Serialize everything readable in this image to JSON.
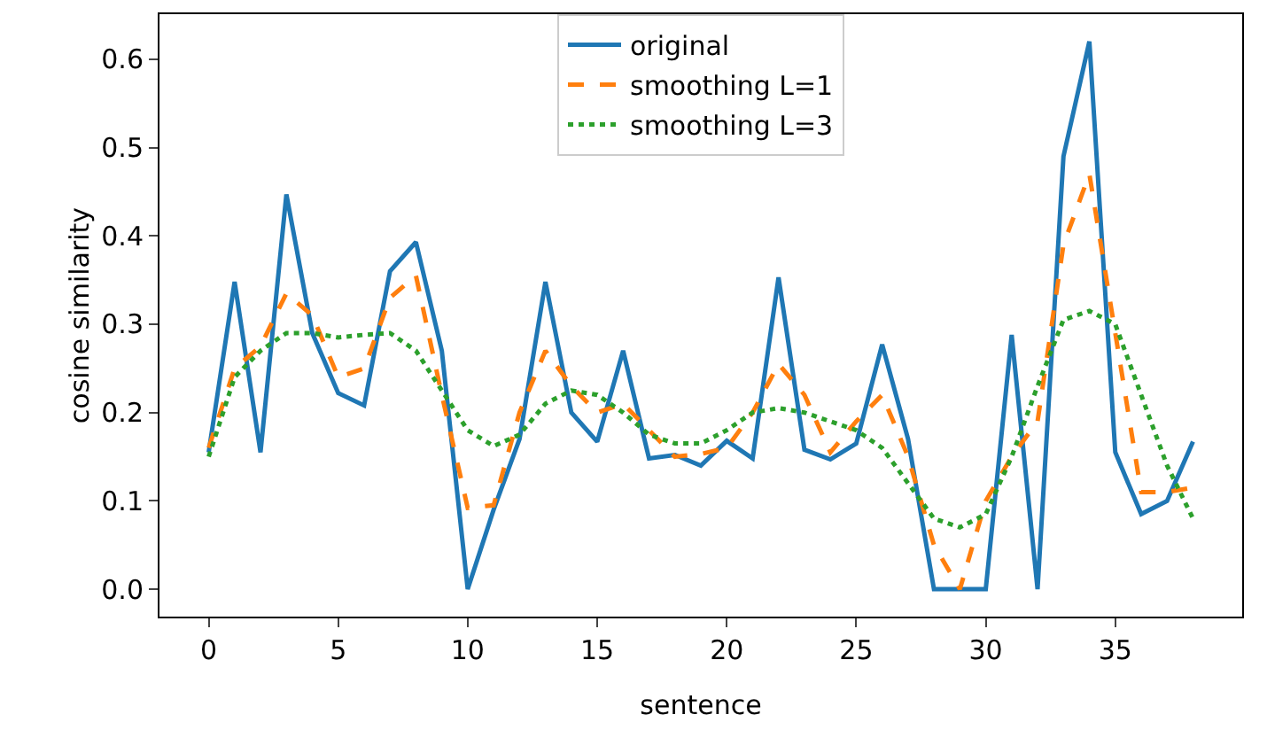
{
  "chart_data": {
    "type": "line",
    "xlabel": "sentence",
    "ylabel": "cosine similarity",
    "x": [
      0,
      1,
      2,
      3,
      4,
      5,
      6,
      7,
      8,
      9,
      10,
      11,
      12,
      13,
      14,
      15,
      16,
      17,
      18,
      19,
      20,
      21,
      22,
      23,
      24,
      25,
      26,
      27,
      28,
      29,
      30,
      31,
      32,
      33,
      34,
      35,
      36,
      37,
      38
    ],
    "series": [
      {
        "name": "original",
        "color": "#1f77b4",
        "line_style": "solid",
        "values": [
          0.155,
          0.348,
          0.155,
          0.447,
          0.29,
          0.222,
          0.208,
          0.36,
          0.393,
          0.27,
          0.0,
          0.09,
          0.17,
          0.348,
          0.2,
          0.167,
          0.27,
          0.148,
          0.152,
          0.14,
          0.168,
          0.148,
          0.353,
          0.158,
          0.147,
          0.165,
          0.277,
          0.17,
          0.0,
          0.0,
          0.0,
          0.288,
          0.0,
          0.49,
          0.62,
          0.155,
          0.085,
          0.1,
          0.167
        ]
      },
      {
        "name": "smoothing L=1",
        "color": "#ff7f0e",
        "line_style": "dashed",
        "values": [
          0.16,
          0.25,
          0.275,
          0.335,
          0.31,
          0.24,
          0.25,
          0.33,
          0.355,
          0.22,
          0.092,
          0.095,
          0.2,
          0.27,
          0.23,
          0.2,
          0.21,
          0.18,
          0.15,
          0.153,
          0.16,
          0.2,
          0.255,
          0.22,
          0.155,
          0.19,
          0.22,
          0.15,
          0.05,
          0.0,
          0.1,
          0.15,
          0.19,
          0.39,
          0.47,
          0.29,
          0.11,
          0.11,
          0.115
        ]
      },
      {
        "name": "smoothing L=3",
        "color": "#2ca02c",
        "line_style": "dotted",
        "values": [
          0.15,
          0.24,
          0.27,
          0.29,
          0.29,
          0.285,
          0.288,
          0.29,
          0.27,
          0.225,
          0.18,
          0.162,
          0.175,
          0.21,
          0.225,
          0.22,
          0.2,
          0.175,
          0.165,
          0.165,
          0.18,
          0.2,
          0.205,
          0.2,
          0.19,
          0.18,
          0.16,
          0.12,
          0.08,
          0.07,
          0.085,
          0.15,
          0.23,
          0.305,
          0.315,
          0.3,
          0.22,
          0.14,
          0.08
        ]
      }
    ],
    "xlim": [
      -1.9,
      39.9
    ],
    "xticks": [
      0,
      5,
      10,
      15,
      20,
      25,
      30,
      35
    ],
    "ylim": [
      -0.031,
      0.651
    ],
    "yticks": [
      {
        "value": 0,
        "label": "0.0"
      },
      0.1,
      0.2,
      0.3,
      0.4,
      0.5,
      0.6
    ],
    "grid": false,
    "legend": "top"
  }
}
